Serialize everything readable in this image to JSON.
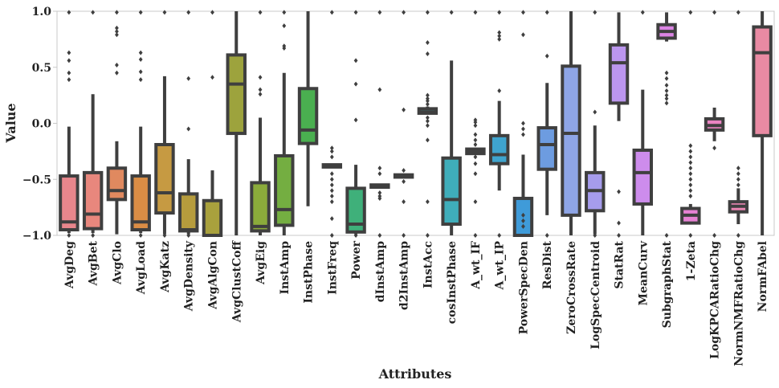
{
  "chart_data": {
    "type": "boxplot",
    "xlabel": "Attributes",
    "ylabel": "Value",
    "ylim": [
      -1.0,
      1.0
    ],
    "yticks": [
      "1.0",
      "0.5",
      "0.0",
      "−0.5",
      "−1.0"
    ],
    "ytick_values": [
      1.0,
      0.5,
      0.0,
      -0.5,
      -1.0
    ],
    "grid": false,
    "series": [
      {
        "name": "AvgDeg",
        "color": "#e8868c",
        "whislo": -0.98,
        "q1": -0.95,
        "median": -0.88,
        "q3": -0.47,
        "whishi": -0.03,
        "fliers": [
          0.63,
          0.56,
          0.45,
          0.39,
          0.99,
          -1.0
        ]
      },
      {
        "name": "AvgBet",
        "color": "#e8877d",
        "whislo": -0.98,
        "q1": -0.94,
        "median": -0.81,
        "q3": -0.44,
        "whishi": 0.26,
        "fliers": [
          0.99,
          -1.0
        ]
      },
      {
        "name": "AvgClo",
        "color": "#e0895f",
        "whislo": -0.99,
        "q1": -0.68,
        "median": -0.6,
        "q3": -0.4,
        "whishi": -0.16,
        "fliers": [
          0.85,
          0.82,
          0.79,
          0.52,
          0.45,
          0.99
        ]
      },
      {
        "name": "AvgLoad",
        "color": "#da8d45",
        "whislo": -0.98,
        "q1": -0.95,
        "median": -0.88,
        "q3": -0.47,
        "whishi": -0.03,
        "fliers": [
          0.63,
          0.57,
          0.46,
          0.39,
          0.99,
          -1.0
        ]
      },
      {
        "name": "AvgKatz",
        "color": "#c69a42",
        "whislo": -0.99,
        "q1": -0.8,
        "median": -0.62,
        "q3": -0.19,
        "whishi": 0.42,
        "fliers": [
          0.99,
          -1.0
        ]
      },
      {
        "name": "AvgDensity",
        "color": "#b69c3d",
        "whislo": -0.99,
        "q1": -0.96,
        "median": -0.95,
        "q3": -0.63,
        "whishi": -0.32,
        "fliers": [
          0.4,
          -0.05,
          0.99,
          -1.0
        ]
      },
      {
        "name": "AvgAlgCon",
        "color": "#a9a13d",
        "whislo": -1.0,
        "q1": -1.0,
        "median": -1.0,
        "q3": -0.69,
        "whishi": -0.42,
        "fliers": [
          0.41,
          0.99
        ]
      },
      {
        "name": "AvgClustCoff",
        "color": "#9da33d",
        "whislo": -1.0,
        "q1": -0.09,
        "median": 0.35,
        "q3": 0.61,
        "whishi": 1.0,
        "fliers": []
      },
      {
        "name": "AvgEig",
        "color": "#8bab3b",
        "whislo": -1.0,
        "q1": -0.96,
        "median": -0.92,
        "q3": -0.53,
        "whishi": 0.05,
        "fliers": [
          0.41,
          0.3,
          0.26,
          0.99
        ]
      },
      {
        "name": "InstAmp",
        "color": "#74ae41",
        "whislo": -1.0,
        "q1": -0.91,
        "median": -0.77,
        "q3": -0.29,
        "whishi": 0.45,
        "fliers": [
          0.87,
          0.69,
          0.67,
          0.99
        ]
      },
      {
        "name": "InstPhase",
        "color": "#4aaf50",
        "whislo": -0.74,
        "q1": -0.18,
        "median": -0.06,
        "q3": 0.31,
        "whishi": 1.0,
        "fliers": []
      },
      {
        "name": "InstFreq",
        "color": "#3fb064",
        "whislo": -0.4,
        "q1": -0.39,
        "median": -0.38,
        "q3": -0.37,
        "whishi": -0.36,
        "fliers": [
          -0.22,
          -0.25,
          -0.3,
          -0.45,
          -0.5,
          -0.55,
          -0.6,
          -0.65,
          -0.7,
          -0.85,
          -1.0,
          0.99
        ]
      },
      {
        "name": "Power",
        "color": "#3fb07a",
        "whislo": -0.99,
        "q1": -0.97,
        "median": -0.9,
        "q3": -0.58,
        "whishi": -0.37,
        "fliers": [
          0.56,
          0.35,
          0.03,
          0.99,
          -1.0
        ]
      },
      {
        "name": "dInstAmp",
        "color": "#3fb08c",
        "whislo": -0.58,
        "q1": -0.57,
        "median": -0.56,
        "q3": -0.55,
        "whishi": -0.54,
        "fliers": [
          0.3,
          -0.4,
          -0.45,
          -0.62,
          -0.65,
          -0.67,
          0.99,
          -1.0
        ]
      },
      {
        "name": "d2InstAmp",
        "color": "#3fb09c",
        "whislo": -0.49,
        "q1": -0.48,
        "median": -0.47,
        "q3": -0.46,
        "whishi": -0.45,
        "fliers": [
          0.12,
          -0.42,
          -0.52,
          -0.7,
          0.99,
          -1.0
        ]
      },
      {
        "name": "InstAcc",
        "color": "#3fb0ad",
        "whislo": 0.08,
        "q1": 0.09,
        "median": 0.1,
        "q3": 0.13,
        "whishi": 0.15,
        "fliers": [
          0.72,
          0.62,
          0.25,
          0.22,
          0.2,
          0.17,
          0.05,
          0.02,
          -0.02,
          -0.15,
          -0.7,
          0.99,
          -1.0
        ]
      },
      {
        "name": "cosInstPhase",
        "color": "#3fadba",
        "whislo": -1.0,
        "q1": -0.9,
        "median": -0.68,
        "q3": -0.31,
        "whishi": 0.56,
        "fliers": [
          0.99
        ]
      },
      {
        "name": "A_wt_IF",
        "color": "#3faac4",
        "whislo": -0.27,
        "q1": -0.27,
        "median": -0.25,
        "q3": -0.23,
        "whishi": -0.22,
        "fliers": [
          0.03,
          0.01,
          -0.02,
          -0.1,
          -0.15,
          -0.19,
          -0.3,
          -0.36,
          -0.45,
          -0.7,
          0.99,
          -1.0
        ]
      },
      {
        "name": "A_wt_IP",
        "color": "#3fa4ce",
        "whislo": -0.6,
        "q1": -0.36,
        "median": -0.28,
        "q3": -0.11,
        "whishi": 0.2,
        "fliers": [
          0.81,
          0.78,
          0.75,
          0.29,
          0.99,
          -1.0
        ]
      },
      {
        "name": "PowerSpecDen",
        "color": "#3f9bd9",
        "whislo": -1.0,
        "q1": -1.0,
        "median": -1.0,
        "q3": -0.67,
        "whishi": -0.28,
        "fliers": [
          0.79,
          0.0,
          -0.05,
          -0.1,
          -0.82,
          -0.87,
          -0.92,
          0.99
        ]
      },
      {
        "name": "ResDist",
        "color": "#6d9ce0",
        "whislo": -0.82,
        "q1": -0.41,
        "median": -0.19,
        "q3": -0.04,
        "whishi": 0.36,
        "fliers": [
          0.6,
          0.99,
          -1.0
        ]
      },
      {
        "name": "ZeroCrossRate",
        "color": "#8ea5e6",
        "whislo": -1.0,
        "q1": -0.82,
        "median": -0.09,
        "q3": 0.51,
        "whishi": 1.0,
        "fliers": []
      },
      {
        "name": "LogSpecCentroid",
        "color": "#a69cec",
        "whislo": -0.99,
        "q1": -0.78,
        "median": -0.6,
        "q3": -0.44,
        "whishi": -0.02,
        "fliers": [
          0.1,
          0.99,
          -1.0
        ]
      },
      {
        "name": "StatRat",
        "color": "#bb96ee",
        "whislo": 0.02,
        "q1": 0.18,
        "median": 0.54,
        "q3": 0.7,
        "whishi": 0.99,
        "fliers": [
          -0.61,
          -0.89,
          -1.0
        ]
      },
      {
        "name": "MeanCurv",
        "color": "#cd8cec",
        "whislo": -1.0,
        "q1": -0.72,
        "median": -0.44,
        "q3": -0.24,
        "whishi": 0.3,
        "fliers": [
          0.99
        ]
      },
      {
        "name": "SubgraphStat",
        "color": "#db84e4",
        "whislo": 0.73,
        "q1": 0.76,
        "median": 0.82,
        "q3": 0.88,
        "whishi": 0.99,
        "fliers": [
          0.45,
          0.4,
          0.34,
          0.29,
          0.25,
          0.22,
          0.18,
          -1.0
        ]
      },
      {
        "name": "1-Zeta",
        "color": "#e681d3",
        "whislo": -0.9,
        "q1": -0.89,
        "median": -0.82,
        "q3": -0.76,
        "whishi": -0.72,
        "fliers": [
          -0.2,
          -0.25,
          -0.3,
          -0.35,
          -0.4,
          -0.45,
          -0.5,
          -0.55,
          -0.6,
          -0.65,
          -1.0,
          0.99
        ]
      },
      {
        "name": "LogKPCARatioChg",
        "color": "#ea84c2",
        "whislo": -0.16,
        "q1": -0.06,
        "median": -0.02,
        "q3": 0.04,
        "whishi": 0.14,
        "fliers": [
          -0.22,
          0.99,
          -1.0
        ]
      },
      {
        "name": "NormNMFRatioChg",
        "color": "#ec87b4",
        "whislo": -0.9,
        "q1": -0.79,
        "median": -0.74,
        "q3": -0.7,
        "whishi": -0.58,
        "fliers": [
          -0.4,
          -0.45,
          -0.5,
          -0.55,
          0.99,
          -1.0
        ]
      },
      {
        "name": "NormFAbel",
        "color": "#e98aa3",
        "whislo": -1.0,
        "q1": -0.11,
        "median": 0.63,
        "q3": 0.86,
        "whishi": 1.0,
        "fliers": []
      }
    ]
  }
}
